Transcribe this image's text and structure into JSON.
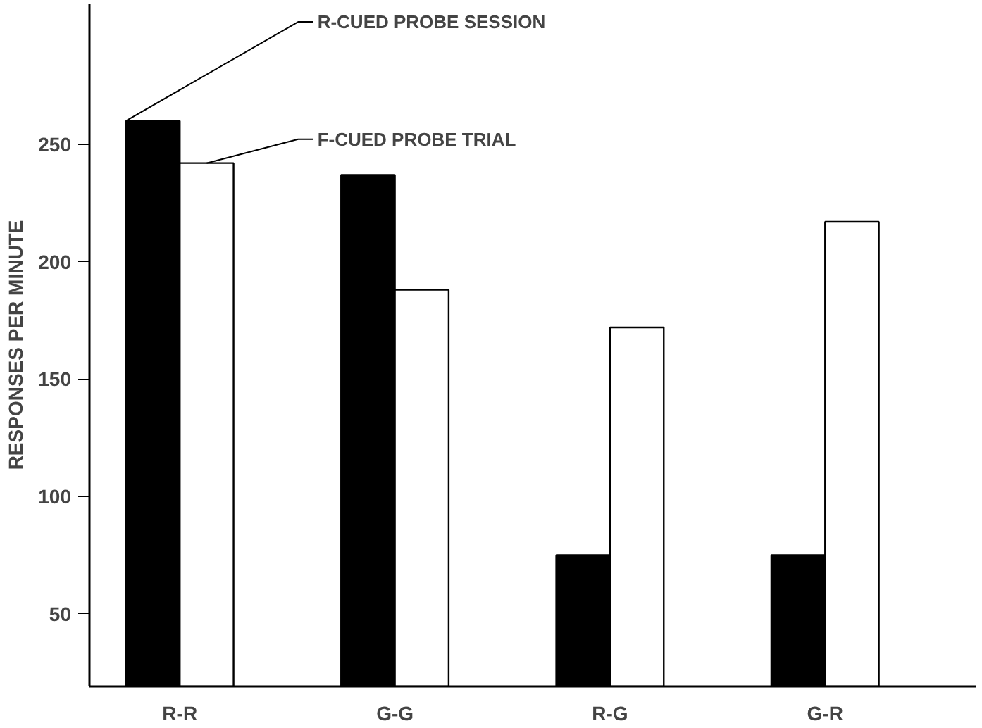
{
  "chart_data": {
    "type": "bar",
    "ylabel": "RESPONSES PER MINUTE",
    "categories": [
      "R-R",
      "G-G",
      "R-G",
      "G-R"
    ],
    "series": [
      {
        "name": "R-CUED PROBE SESSION",
        "color": "#000000",
        "values": [
          260,
          237,
          75,
          75
        ]
      },
      {
        "name": "F-CUED PROBE TRIAL",
        "color": "#ffffff",
        "values": [
          242,
          188,
          172,
          217
        ]
      }
    ],
    "ylim": [
      19,
      310
    ],
    "yticks": [
      50,
      100,
      150,
      200,
      250
    ],
    "grid": false
  }
}
